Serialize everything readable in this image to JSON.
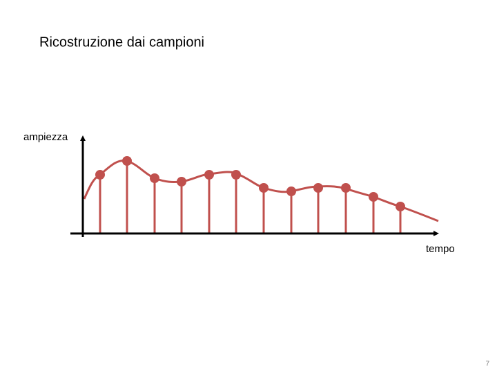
{
  "header": {
    "title": "Ricostruzione dai campioni"
  },
  "diagram": {
    "y_axis_label": "ampiezza",
    "x_axis_label": "tempo"
  },
  "footer": {
    "page_number": "7"
  }
}
